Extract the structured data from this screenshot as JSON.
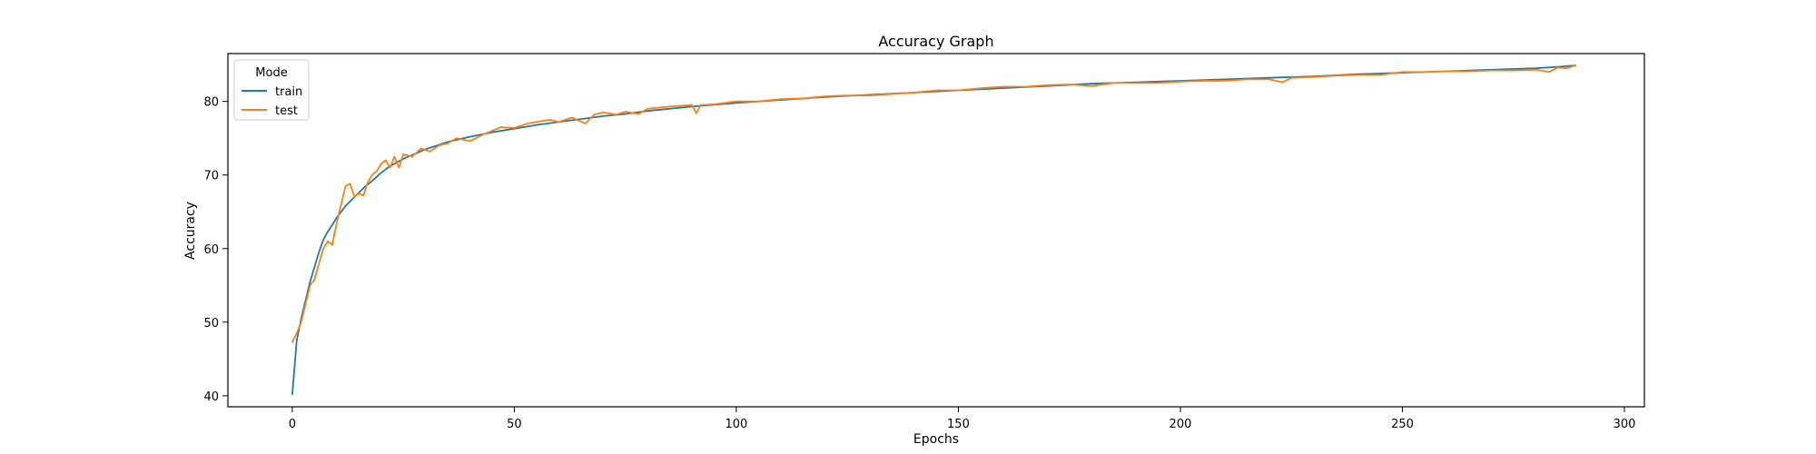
{
  "chart_data": {
    "type": "line",
    "title": "Accuracy Graph",
    "xlabel": "Epochs",
    "ylabel": "Accuracy",
    "xlim": [
      -14.5,
      304.5
    ],
    "ylim": [
      38.5,
      86.5
    ],
    "xticks": [
      0,
      50,
      100,
      150,
      200,
      250,
      300
    ],
    "yticks": [
      40,
      50,
      60,
      70,
      80
    ],
    "grid": false,
    "legend": {
      "title": "Mode",
      "position": "top-left"
    },
    "series": [
      {
        "name": "train",
        "color": "#1f77b4",
        "x": [
          0,
          1,
          2,
          3,
          4,
          5,
          6,
          7,
          8,
          9,
          10,
          12,
          14,
          16,
          18,
          20,
          22,
          25,
          30,
          35,
          40,
          45,
          50,
          55,
          60,
          65,
          70,
          75,
          80,
          90,
          100,
          110,
          120,
          130,
          140,
          150,
          160,
          170,
          180,
          190,
          200,
          210,
          220,
          230,
          240,
          250,
          260,
          270,
          280,
          285,
          289
        ],
        "values": [
          40.2,
          47.5,
          50.5,
          53.0,
          55.5,
          57.5,
          59.5,
          61.2,
          62.3,
          63.2,
          64.2,
          65.8,
          67.0,
          68.2,
          69.2,
          70.3,
          71.2,
          72.2,
          73.5,
          74.5,
          75.2,
          75.8,
          76.3,
          76.8,
          77.2,
          77.6,
          78.0,
          78.3,
          78.7,
          79.3,
          79.8,
          80.2,
          80.6,
          80.9,
          81.2,
          81.5,
          81.8,
          82.1,
          82.4,
          82.6,
          82.8,
          83.0,
          83.2,
          83.4,
          83.7,
          83.9,
          84.1,
          84.3,
          84.5,
          84.7,
          84.9
        ]
      },
      {
        "name": "test",
        "color": "#ff7f0e",
        "x": [
          0,
          1,
          2,
          3,
          4,
          5,
          6,
          7,
          8,
          9,
          10,
          11,
          12,
          13,
          14,
          15,
          16,
          17,
          18,
          19,
          20,
          21,
          22,
          23,
          24,
          25,
          27,
          29,
          31,
          33,
          35,
          37,
          40,
          43,
          45,
          47,
          50,
          53,
          55,
          58,
          60,
          63,
          66,
          68,
          70,
          73,
          75,
          78,
          80,
          85,
          90,
          91,
          92,
          95,
          100,
          105,
          110,
          115,
          120,
          125,
          130,
          135,
          140,
          145,
          150,
          155,
          160,
          165,
          170,
          175,
          180,
          185,
          190,
          195,
          200,
          205,
          210,
          215,
          220,
          223,
          225,
          230,
          235,
          240,
          245,
          250,
          255,
          260,
          265,
          270,
          275,
          280,
          283,
          285,
          287,
          289
        ],
        "values": [
          47.3,
          48.5,
          50.0,
          52.5,
          55.0,
          55.8,
          58.0,
          60.0,
          61.0,
          60.5,
          63.5,
          66.0,
          68.5,
          68.8,
          67.0,
          67.5,
          67.2,
          69.0,
          70.0,
          70.5,
          71.5,
          72.0,
          71.0,
          72.5,
          71.0,
          72.8,
          72.5,
          73.6,
          73.2,
          74.0,
          74.3,
          75.0,
          74.6,
          75.5,
          76.0,
          76.5,
          76.4,
          77.0,
          77.2,
          77.5,
          77.2,
          77.8,
          77.0,
          78.2,
          78.5,
          78.2,
          78.6,
          78.3,
          79.0,
          79.3,
          79.5,
          78.4,
          79.5,
          79.6,
          80.0,
          80.0,
          80.3,
          80.4,
          80.7,
          80.8,
          80.8,
          81.0,
          81.2,
          81.5,
          81.5,
          81.8,
          82.0,
          82.0,
          82.2,
          82.3,
          82.1,
          82.5,
          82.5,
          82.5,
          82.7,
          82.8,
          82.8,
          83.0,
          83.0,
          82.6,
          83.2,
          83.3,
          83.5,
          83.6,
          83.6,
          84.0,
          84.0,
          84.1,
          84.1,
          84.2,
          84.2,
          84.3,
          84.0,
          84.6,
          84.5,
          84.9
        ]
      }
    ]
  }
}
